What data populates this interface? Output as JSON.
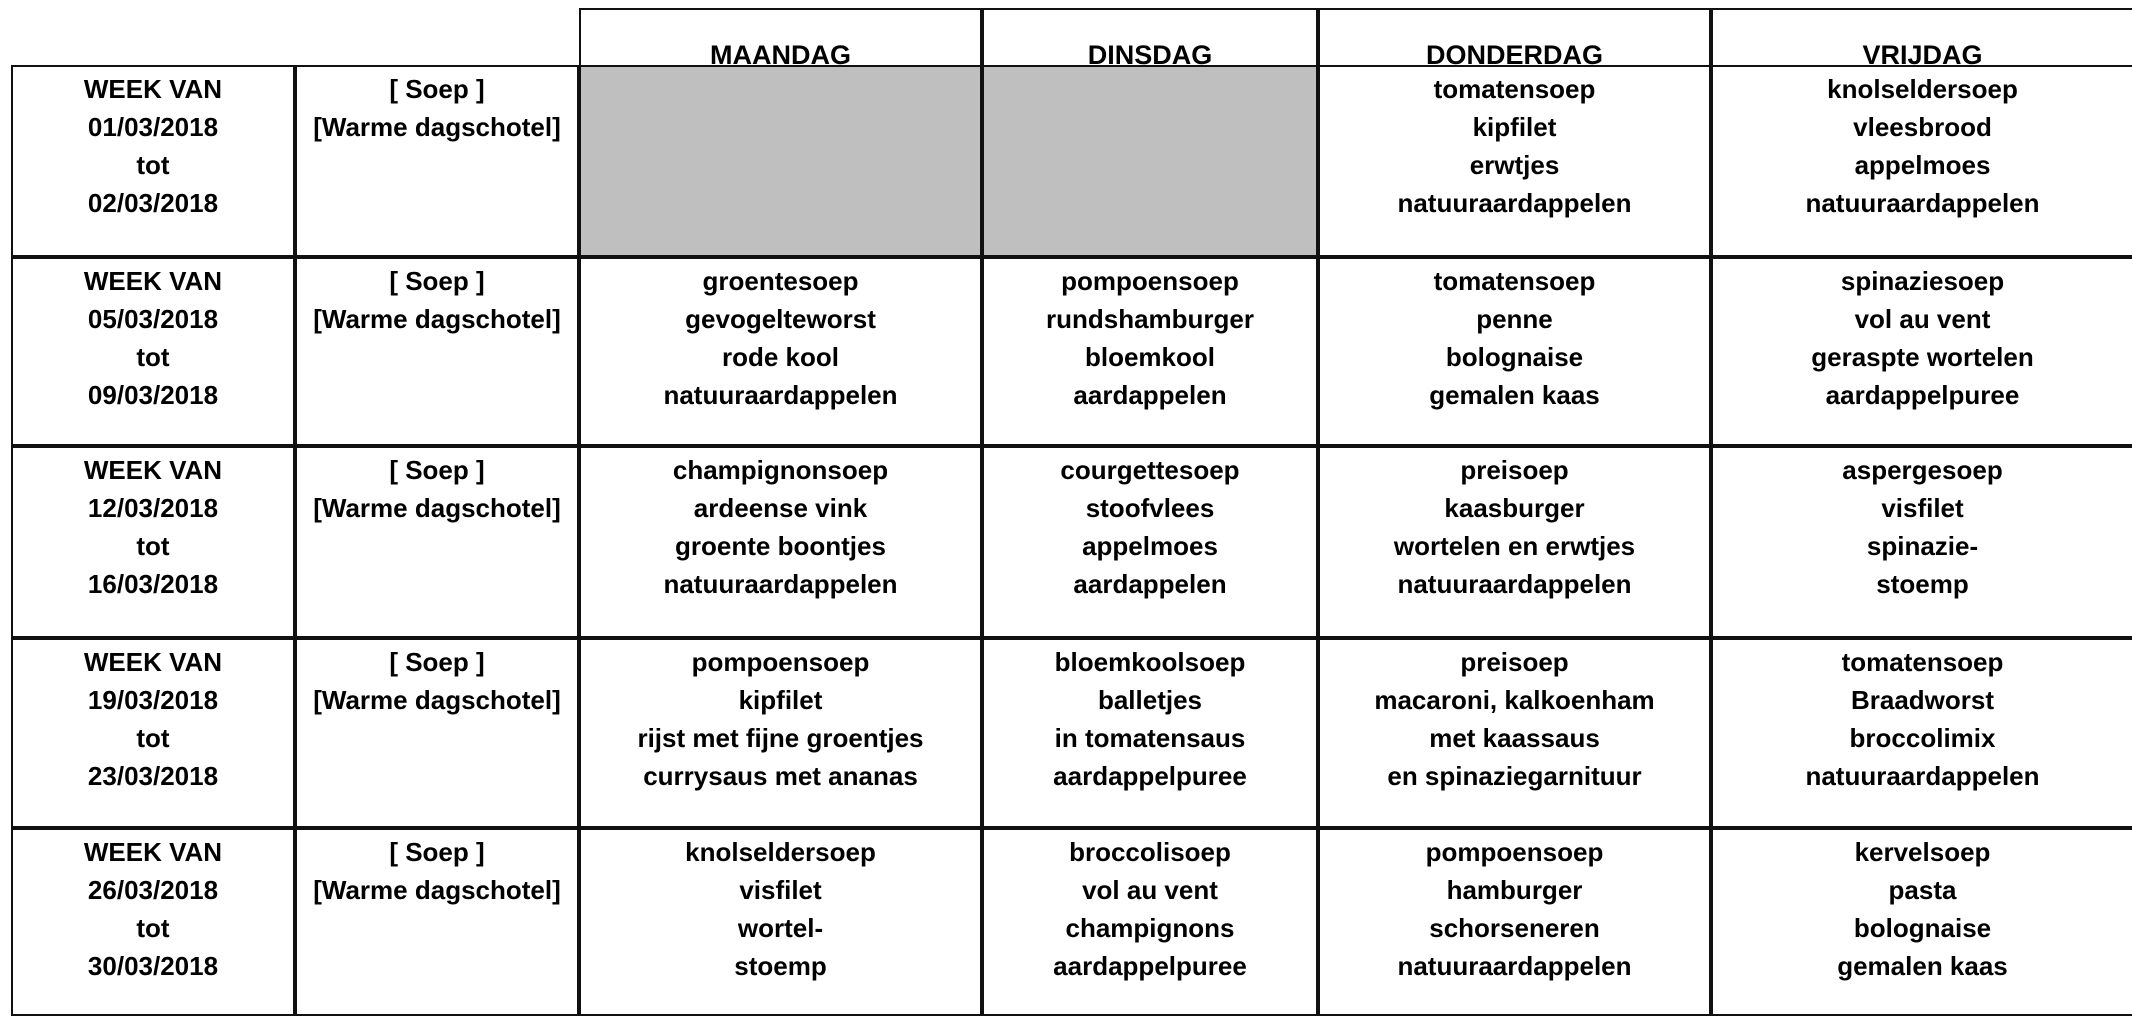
{
  "header": {
    "days": [
      "MAANDAG",
      "DINSDAG",
      "DONDERDAG",
      "VRIJDAG"
    ]
  },
  "weeks": [
    {
      "label": [
        "WEEK VAN",
        "01/03/2018",
        "tot",
        "02/03/2018"
      ],
      "courses": [
        "[ Soep ]",
        "[Warme dagschotel]"
      ],
      "days": [
        [],
        [],
        [
          "tomatensoep",
          "kipfilet",
          "erwtjes",
          "natuuraardappelen"
        ],
        [
          "knolseldersoep",
          "vleesbrood",
          "appelmoes",
          "natuuraardappelen"
        ]
      ]
    },
    {
      "label": [
        "WEEK VAN",
        "05/03/2018",
        "tot",
        "09/03/2018"
      ],
      "courses": [
        "[ Soep ]",
        "[Warme dagschotel]"
      ],
      "days": [
        [
          "groentesoep",
          "gevogelteworst",
          "rode kool",
          "natuuraardappelen"
        ],
        [
          "pompoensoep",
          "rundshamburger",
          "bloemkool",
          "aardappelen"
        ],
        [
          "tomatensoep",
          "penne",
          "bolognaise",
          "gemalen kaas"
        ],
        [
          "spinaziesoep",
          "vol au vent",
          "geraspte wortelen",
          "aardappelpuree"
        ]
      ]
    },
    {
      "label": [
        "WEEK VAN",
        "12/03/2018",
        "tot",
        "16/03/2018"
      ],
      "courses": [
        "[ Soep ]",
        "[Warme dagschotel]"
      ],
      "days": [
        [
          "champignonsoep",
          "ardeense vink",
          "groente boontjes",
          "natuuraardappelen"
        ],
        [
          "courgettesoep",
          "stoofvlees",
          "appelmoes",
          "aardappelen"
        ],
        [
          "preisoep",
          "kaasburger",
          "wortelen en erwtjes",
          "natuuraardappelen"
        ],
        [
          "aspergesoep",
          "visfilet",
          "spinazie-",
          "stoemp"
        ]
      ]
    },
    {
      "label": [
        "WEEK VAN",
        "19/03/2018",
        "tot",
        "23/03/2018"
      ],
      "courses": [
        "[ Soep ]",
        "[Warme dagschotel]"
      ],
      "days": [
        [
          "pompoensoep",
          "kipfilet",
          "rijst met fijne groentjes",
          "currysaus met ananas"
        ],
        [
          "bloemkoolsoep",
          "balletjes",
          "in tomatensaus",
          "aardappelpuree"
        ],
        [
          "preisoep",
          "macaroni, kalkoenham",
          "met kaassaus",
          "en spinaziegarnituur"
        ],
        [
          "tomatensoep",
          "Braadworst",
          "broccolimix",
          "natuuraardappelen"
        ]
      ]
    },
    {
      "label": [
        "WEEK VAN",
        "26/03/2018",
        "tot",
        "30/03/2018"
      ],
      "courses": [
        "[ Soep ]",
        "[Warme dagschotel]"
      ],
      "days": [
        [
          "knolseldersoep",
          "visfilet",
          "wortel-",
          "stoemp"
        ],
        [
          "broccolisoep",
          "vol au vent",
          "champignons",
          "aardappelpuree"
        ],
        [
          "pompoensoep",
          "hamburger",
          "schorseneren",
          "natuuraardappelen"
        ],
        [
          "kervelsoep",
          "pasta",
          "bolognaise",
          "gemalen kaas"
        ]
      ]
    }
  ]
}
